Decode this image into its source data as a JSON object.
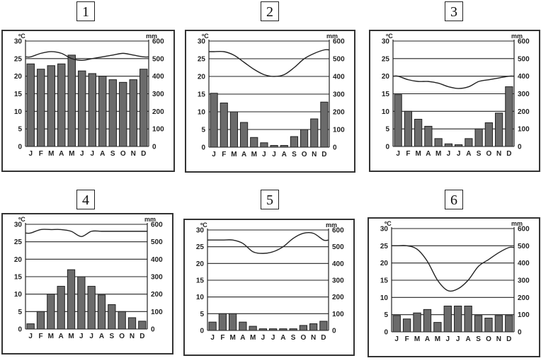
{
  "chart_data": [
    {
      "type": "climograph",
      "label": "1",
      "y_left_unit": "ºC",
      "y_right_unit": "mm",
      "y_left_ticks": [
        "0",
        "5",
        "10",
        "15",
        "20",
        "25",
        "30"
      ],
      "y_right_ticks": [
        "0",
        "100",
        "200",
        "300",
        "400",
        "500",
        "600"
      ],
      "ylim_left": [
        0,
        30
      ],
      "ylim_right": [
        0,
        600
      ],
      "categories": [
        "J",
        "F",
        "M",
        "A",
        "M",
        "J",
        "J",
        "A",
        "S",
        "O",
        "N",
        "D"
      ],
      "precipitation": [
        470,
        440,
        460,
        470,
        520,
        430,
        415,
        400,
        380,
        365,
        380,
        440
      ],
      "temperature": [
        25.5,
        26.5,
        27,
        26.5,
        25,
        24.5,
        25,
        25.5,
        26,
        26.5,
        26,
        25.5
      ]
    },
    {
      "type": "climograph",
      "label": "2",
      "y_left_unit": "ºC",
      "y_right_unit": "mm",
      "y_left_ticks": [
        "0",
        "5",
        "10",
        "15",
        "20",
        "25",
        "30"
      ],
      "y_right_ticks": [
        "0",
        "100",
        "200",
        "300",
        "400",
        "500",
        "600"
      ],
      "ylim_left": [
        0,
        30
      ],
      "ylim_right": [
        0,
        600
      ],
      "categories": [
        "J",
        "F",
        "M",
        "A",
        "M",
        "J",
        "J",
        "A",
        "S",
        "O",
        "N",
        "D"
      ],
      "precipitation": [
        305,
        250,
        200,
        140,
        55,
        25,
        10,
        10,
        60,
        100,
        160,
        255
      ],
      "temperature": [
        27,
        27,
        26,
        24,
        22,
        20.5,
        20,
        20.5,
        22.5,
        25,
        26.5,
        27.5
      ]
    },
    {
      "type": "climograph",
      "label": "3",
      "y_left_unit": "ºC",
      "y_right_unit": "mm",
      "y_left_ticks": [
        "0",
        "5",
        "10",
        "15",
        "20",
        "25",
        "30"
      ],
      "y_right_ticks": [
        "0",
        "100",
        "200",
        "300",
        "400",
        "500",
        "600"
      ],
      "ylim_left": [
        0,
        30
      ],
      "ylim_right": [
        0,
        600
      ],
      "categories": [
        "J",
        "F",
        "M",
        "A",
        "M",
        "J",
        "J",
        "A",
        "S",
        "O",
        "N",
        "D"
      ],
      "precipitation": [
        295,
        200,
        155,
        115,
        45,
        15,
        10,
        45,
        100,
        135,
        190,
        340
      ],
      "temperature": [
        20,
        19,
        18.5,
        18.5,
        18,
        17,
        16.5,
        17,
        18.5,
        19,
        19.5,
        20
      ]
    },
    {
      "type": "climograph",
      "label": "4",
      "y_left_unit": "ºC",
      "y_right_unit": "mm",
      "y_left_ticks": [
        "0",
        "5",
        "10",
        "15",
        "20",
        "25",
        "30"
      ],
      "y_right_ticks": [
        "0",
        "100",
        "200",
        "300",
        "400",
        "500",
        "600"
      ],
      "ylim_left": [
        0,
        30
      ],
      "ylim_right": [
        0,
        600
      ],
      "categories": [
        "J",
        "F",
        "M",
        "A",
        "M",
        "J",
        "J",
        "A",
        "S",
        "O",
        "N",
        "D"
      ],
      "precipitation": [
        30,
        100,
        200,
        245,
        340,
        300,
        245,
        195,
        140,
        100,
        65,
        45
      ],
      "temperature": [
        27.5,
        28.5,
        28.5,
        28.5,
        28,
        26.5,
        28,
        28,
        28,
        28,
        28,
        28
      ]
    },
    {
      "type": "climograph",
      "label": "5",
      "y_left_unit": "ºC",
      "y_right_unit": "mm",
      "y_left_ticks": [
        "0",
        "5",
        "10",
        "15",
        "20",
        "25",
        "30"
      ],
      "y_right_ticks": [
        "0",
        "100",
        "200",
        "300",
        "400",
        "500",
        "600"
      ],
      "ylim_left": [
        0,
        30
      ],
      "ylim_right": [
        0,
        600
      ],
      "categories": [
        "J",
        "F",
        "M",
        "A",
        "M",
        "J",
        "J",
        "A",
        "S",
        "O",
        "N",
        "D"
      ],
      "precipitation": [
        50,
        100,
        100,
        50,
        25,
        10,
        10,
        10,
        10,
        30,
        40,
        55
      ],
      "temperature": [
        27,
        27,
        27,
        26,
        23.5,
        23,
        23.5,
        25,
        27.5,
        29,
        29,
        27
      ]
    },
    {
      "type": "climograph",
      "label": "6",
      "y_left_unit": "ºC",
      "y_right_unit": "mm",
      "y_left_ticks": [
        "0",
        "5",
        "10",
        "15",
        "20",
        "25",
        "30"
      ],
      "y_right_ticks": [
        "0",
        "100",
        "200",
        "300",
        "400",
        "500",
        "600"
      ],
      "ylim_left": [
        0,
        30
      ],
      "ylim_right": [
        0,
        600
      ],
      "categories": [
        "J",
        "F",
        "M",
        "A",
        "M",
        "J",
        "J",
        "A",
        "S",
        "O",
        "N",
        "D"
      ],
      "precipitation": [
        95,
        75,
        110,
        130,
        55,
        150,
        150,
        150,
        95,
        80,
        95,
        95
      ],
      "temperature": [
        25,
        25,
        24,
        20.5,
        15,
        12,
        12.5,
        15,
        19,
        21,
        23,
        24.5
      ]
    }
  ]
}
